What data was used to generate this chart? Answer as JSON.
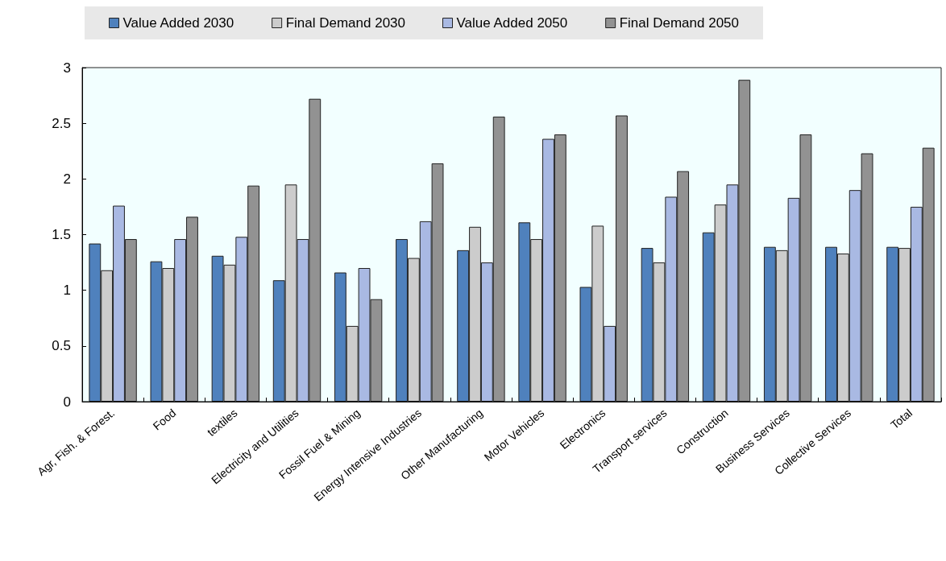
{
  "chart_data": {
    "type": "bar",
    "categories": [
      "Agr, Fish. & Forest.",
      "Food",
      "textiles",
      "Electricity and Utilities",
      "Fossil Fuel & Mining",
      "Energy Intensive Industries",
      "Other Manufacturing",
      "Motor Vehicles",
      "Electronics",
      "Transport services",
      "Construction",
      "Business Services",
      "Collective Services",
      "Total"
    ],
    "series": [
      {
        "name": "Value Added 2030",
        "color": "#4f81bd",
        "values": [
          1.42,
          1.26,
          1.31,
          1.09,
          1.16,
          1.46,
          1.36,
          1.61,
          1.03,
          1.38,
          1.52,
          1.39,
          1.39,
          1.39
        ]
      },
      {
        "name": "Final Demand 2030",
        "color": "#cccccc",
        "values": [
          1.18,
          1.2,
          1.23,
          1.95,
          0.68,
          1.29,
          1.57,
          1.46,
          1.58,
          1.25,
          1.77,
          1.36,
          1.33,
          1.38
        ]
      },
      {
        "name": "Value Added 2050",
        "color": "#a9b9e3",
        "values": [
          1.76,
          1.46,
          1.48,
          1.46,
          1.2,
          1.62,
          1.25,
          2.36,
          0.68,
          1.84,
          1.95,
          1.83,
          1.9,
          1.75
        ]
      },
      {
        "name": "Final Demand 2050",
        "color": "#929292",
        "values": [
          1.46,
          1.66,
          1.94,
          2.72,
          0.92,
          2.14,
          2.56,
          2.4,
          2.57,
          2.07,
          2.89,
          2.4,
          2.23,
          2.28
        ]
      }
    ],
    "ylim": [
      0,
      3
    ],
    "yticks": [
      0,
      0.5,
      1,
      1.5,
      2,
      2.5,
      3
    ],
    "grid": false,
    "legend": "top"
  }
}
